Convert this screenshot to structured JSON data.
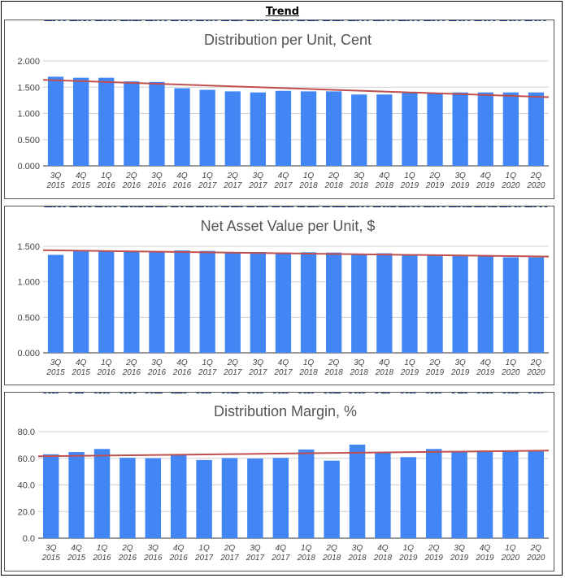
{
  "page": {
    "header_title": "Trend"
  },
  "chart_data": [
    {
      "type": "bar",
      "title": "Distribution per Unit, Cent",
      "xlabel": "",
      "ylabel": "",
      "categories": [
        [
          "3Q",
          "2015"
        ],
        [
          "4Q",
          "2015"
        ],
        [
          "1Q",
          "2016"
        ],
        [
          "2Q",
          "2016"
        ],
        [
          "3Q",
          "2016"
        ],
        [
          "4Q",
          "2016"
        ],
        [
          "1Q",
          "2017"
        ],
        [
          "2Q",
          "2017"
        ],
        [
          "3Q",
          "2017"
        ],
        [
          "4Q",
          "2017"
        ],
        [
          "1Q",
          "2018"
        ],
        [
          "2Q",
          "2018"
        ],
        [
          "3Q",
          "2018"
        ],
        [
          "4Q",
          "2018"
        ],
        [
          "1Q",
          "2019"
        ],
        [
          "2Q",
          "2019"
        ],
        [
          "3Q",
          "2019"
        ],
        [
          "4Q",
          "2019"
        ],
        [
          "1Q",
          "2020"
        ],
        [
          "2Q",
          "2020"
        ]
      ],
      "values": [
        1.7,
        1.68,
        1.68,
        1.61,
        1.6,
        1.48,
        1.45,
        1.42,
        1.4,
        1.43,
        1.42,
        1.42,
        1.36,
        1.36,
        1.39,
        1.39,
        1.4,
        1.4,
        1.4,
        1.4
      ],
      "data_labels": [
        "1.700",
        "1.680",
        "1.680",
        "1.610",
        "1.600",
        "1.480",
        "1.450",
        "1.420",
        "1.400",
        "1.430",
        "1.420",
        "1.420",
        "1.360",
        "1.360",
        "1.390",
        "1.390",
        "1.400",
        "1.400",
        "1.400",
        "1.400"
      ],
      "ylim": [
        0,
        2.0
      ],
      "yticks": [
        0,
        0.5,
        1.0,
        1.5,
        2.0
      ],
      "ytick_labels": [
        "0.000",
        "0.500",
        "1.000",
        "1.500",
        "2.000"
      ],
      "trendline": [
        1.64,
        1.31
      ],
      "grid": true,
      "bar_color": "#4285f4",
      "trend_color": "#c0504d"
    },
    {
      "type": "bar",
      "title": "Net Asset Value per Unit, $",
      "xlabel": "",
      "ylabel": "",
      "categories": [
        [
          "3Q",
          "2015"
        ],
        [
          "4Q",
          "2015"
        ],
        [
          "1Q",
          "2016"
        ],
        [
          "2Q",
          "2016"
        ],
        [
          "3Q",
          "2016"
        ],
        [
          "4Q",
          "2016"
        ],
        [
          "1Q",
          "2017"
        ],
        [
          "2Q",
          "2017"
        ],
        [
          "3Q",
          "2017"
        ],
        [
          "4Q",
          "2017"
        ],
        [
          "1Q",
          "2018"
        ],
        [
          "2Q",
          "2018"
        ],
        [
          "3Q",
          "2018"
        ],
        [
          "4Q",
          "2018"
        ],
        [
          "1Q",
          "2019"
        ],
        [
          "2Q",
          "2019"
        ],
        [
          "3Q",
          "2019"
        ],
        [
          "4Q",
          "2019"
        ],
        [
          "1Q",
          "2020"
        ],
        [
          "2Q",
          "2020"
        ]
      ],
      "values": [
        1.38,
        1.438,
        1.435,
        1.431,
        1.425,
        1.442,
        1.435,
        1.415,
        1.42,
        1.413,
        1.416,
        1.412,
        1.396,
        1.402,
        1.385,
        1.373,
        1.362,
        1.362,
        1.345,
        1.344
      ],
      "data_labels": [
        "1.380",
        "1.438",
        "1.435",
        "1.431",
        "1.425",
        "1.442",
        "1.435",
        "1.415",
        "1.420",
        "1.413",
        "1.416",
        "1.412",
        "1.396",
        "1.402",
        "1.385",
        "1.373",
        "1.362",
        "1.362",
        "1.345",
        "1.344"
      ],
      "ylim": [
        0,
        1.5
      ],
      "yticks": [
        0,
        0.5,
        1.0,
        1.5
      ],
      "ytick_labels": [
        "0.000",
        "0.500",
        "1.000",
        "1.500"
      ],
      "trendline": [
        1.445,
        1.355
      ],
      "grid": true,
      "bar_color": "#4285f4",
      "trend_color": "#c0504d"
    },
    {
      "type": "bar",
      "title": "Distribution Margin, %",
      "xlabel": "",
      "ylabel": "",
      "categories": [
        [
          "3Q",
          "2015"
        ],
        [
          "4Q",
          "2015"
        ],
        [
          "1Q",
          "2016"
        ],
        [
          "2Q",
          "2016"
        ],
        [
          "3Q",
          "2016"
        ],
        [
          "4Q",
          "2016"
        ],
        [
          "1Q",
          "2017"
        ],
        [
          "2Q",
          "2017"
        ],
        [
          "3Q",
          "2017"
        ],
        [
          "4Q",
          "2017"
        ],
        [
          "1Q",
          "2018"
        ],
        [
          "2Q",
          "2018"
        ],
        [
          "3Q",
          "2018"
        ],
        [
          "4Q",
          "2018"
        ],
        [
          "1Q",
          "2019"
        ],
        [
          "2Q",
          "2019"
        ],
        [
          "3Q",
          "2019"
        ],
        [
          "4Q",
          "2019"
        ],
        [
          "1Q",
          "2020"
        ],
        [
          "2Q",
          "2020"
        ]
      ],
      "values": [
        63.0,
        64.7,
        67.0,
        60.4,
        60.1,
        62.6,
        58.7,
        60.2,
        59.8,
        60.3,
        66.6,
        58.2,
        70.3,
        64.7,
        60.9,
        67.0,
        64.8,
        65.8,
        65.8,
        66.0
      ],
      "data_labels": [
        "63.0",
        "64.7",
        "67.0",
        "60.4",
        "60.1",
        "62.6",
        "58.7",
        "60.2",
        "59.8",
        "60.3",
        "66.6",
        "58.2",
        "70.3",
        "64.7",
        "60.9",
        "67.0",
        "64.8",
        "65.8",
        "65.8",
        "66.0"
      ],
      "ylim": [
        0,
        80
      ],
      "yticks": [
        0,
        20,
        40,
        60,
        80
      ],
      "ytick_labels": [
        "0.0",
        "20.0",
        "40.0",
        "60.0",
        "80.0"
      ],
      "trendline": [
        61.5,
        65.8
      ],
      "grid": true,
      "bar_color": "#4285f4",
      "trend_color": "#c0504d"
    }
  ]
}
